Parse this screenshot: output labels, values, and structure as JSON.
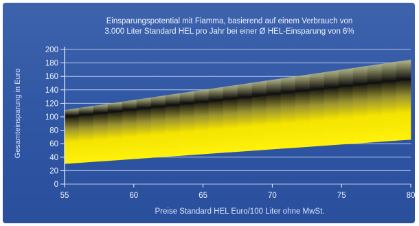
{
  "chart_data": {
    "type": "area",
    "title": "Einsparungspotential mit Fiamma, basierend auf einem Verbrauch von",
    "subtitle": "3.000 Liter Standard HEL pro Jahr bei einer Ø HEL-Einsparung von 6%",
    "xlabel": "Preise Standard HEL Euro/100 Liter ohne MwSt.",
    "ylabel": "Gesamteinsparung in Euro",
    "xlim": [
      55,
      80
    ],
    "ylim": [
      0,
      200
    ],
    "x_ticks": [
      55,
      60,
      65,
      70,
      75,
      80
    ],
    "y_ticks": [
      0,
      20,
      40,
      60,
      80,
      100,
      120,
      140,
      160,
      180,
      200
    ],
    "grid": true,
    "series": [
      {
        "x": [
          55,
          80
        ],
        "values": [
          110,
          185
        ]
      },
      {
        "x": [
          55,
          80
        ],
        "values": [
          99,
          156
        ]
      },
      {
        "x": [
          55,
          80
        ],
        "values": [
          30,
          66
        ]
      }
    ],
    "colors": {
      "band": "#f5e800",
      "center": "#1a1a1a",
      "background": "#3e63ad",
      "grid": "#c9d4f2"
    }
  }
}
